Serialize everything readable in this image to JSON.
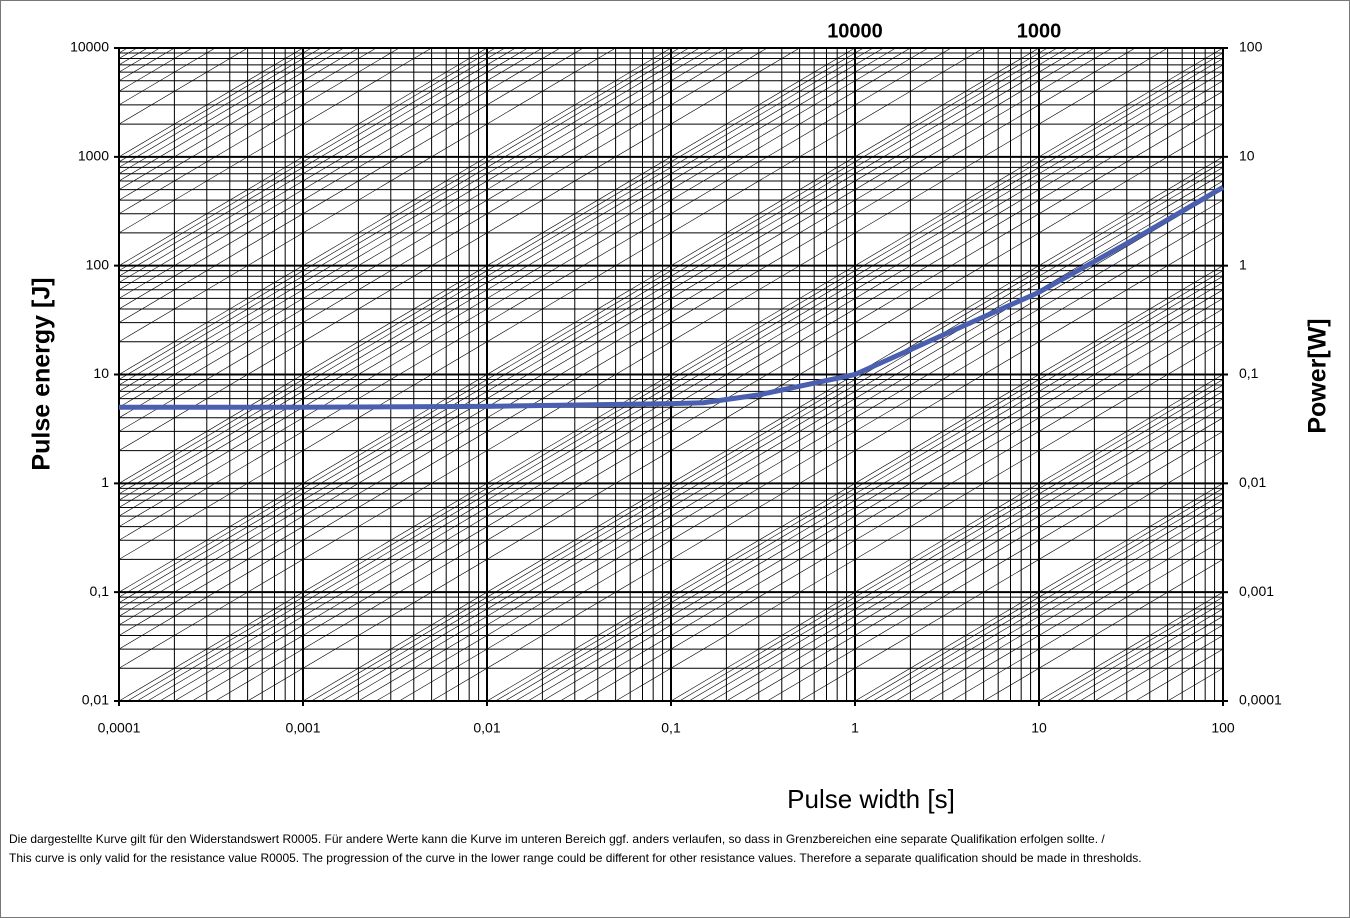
{
  "chart_data": {
    "type": "line",
    "x_label": "Pulse width [s]",
    "y_label": "Pulse energy [J]",
    "y2_label": "Power[W]",
    "xscale": "log",
    "yscale": "log",
    "y2scale": "log",
    "grid": true,
    "power_lines": true,
    "xlim": [
      0.0001,
      100
    ],
    "ylim": [
      0.01,
      10000
    ],
    "y2lim": [
      0.0001,
      100
    ],
    "xticks": [
      {
        "value": 0.0001,
        "label": "0,0001"
      },
      {
        "value": 0.001,
        "label": "0,001"
      },
      {
        "value": 0.01,
        "label": "0,01"
      },
      {
        "value": 0.1,
        "label": "0,1"
      },
      1,
      10,
      100
    ],
    "yticks": [
      {
        "value": 0.01,
        "label": "0,01"
      },
      {
        "value": 0.1,
        "label": "0,1"
      },
      1,
      10,
      100,
      1000,
      10000
    ],
    "y2ticks": [
      {
        "value": 0.0001,
        "label": "0,0001"
      },
      {
        "value": 0.001,
        "label": "0,001"
      },
      {
        "value": 0.01,
        "label": "0,01"
      },
      {
        "value": 0.1,
        "label": "0,1"
      },
      1,
      10,
      100
    ],
    "x": [
      0.0001,
      0.001,
      0.01,
      0.1,
      0.15,
      0.3,
      1,
      3,
      10,
      30,
      100
    ],
    "series": [
      {
        "color": "#4a5fb0",
        "values": [
          5,
          5,
          5.1,
          5.4,
          5.5,
          6.5,
          10,
          23,
          57,
          160,
          525
        ]
      }
    ],
    "annotations": [
      {
        "text": "10000",
        "x": 1,
        "y": 10000
      },
      {
        "text": "1000",
        "x": 10,
        "y": 10000
      }
    ]
  },
  "notes": [
    "Die dargestellte Kurve gilt für den Widerstandswert R0005. Für andere Werte kann die Kurve im unteren Bereich ggf. anders verlaufen, so dass in Grenzbereichen eine separate Qualifikation erfolgen sollte. /",
    "This curve is only valid for the resistance value R0005. The progression of the curve in the lower range could be different for other resistance values. Therefore a separate qualification should be made in thresholds."
  ]
}
